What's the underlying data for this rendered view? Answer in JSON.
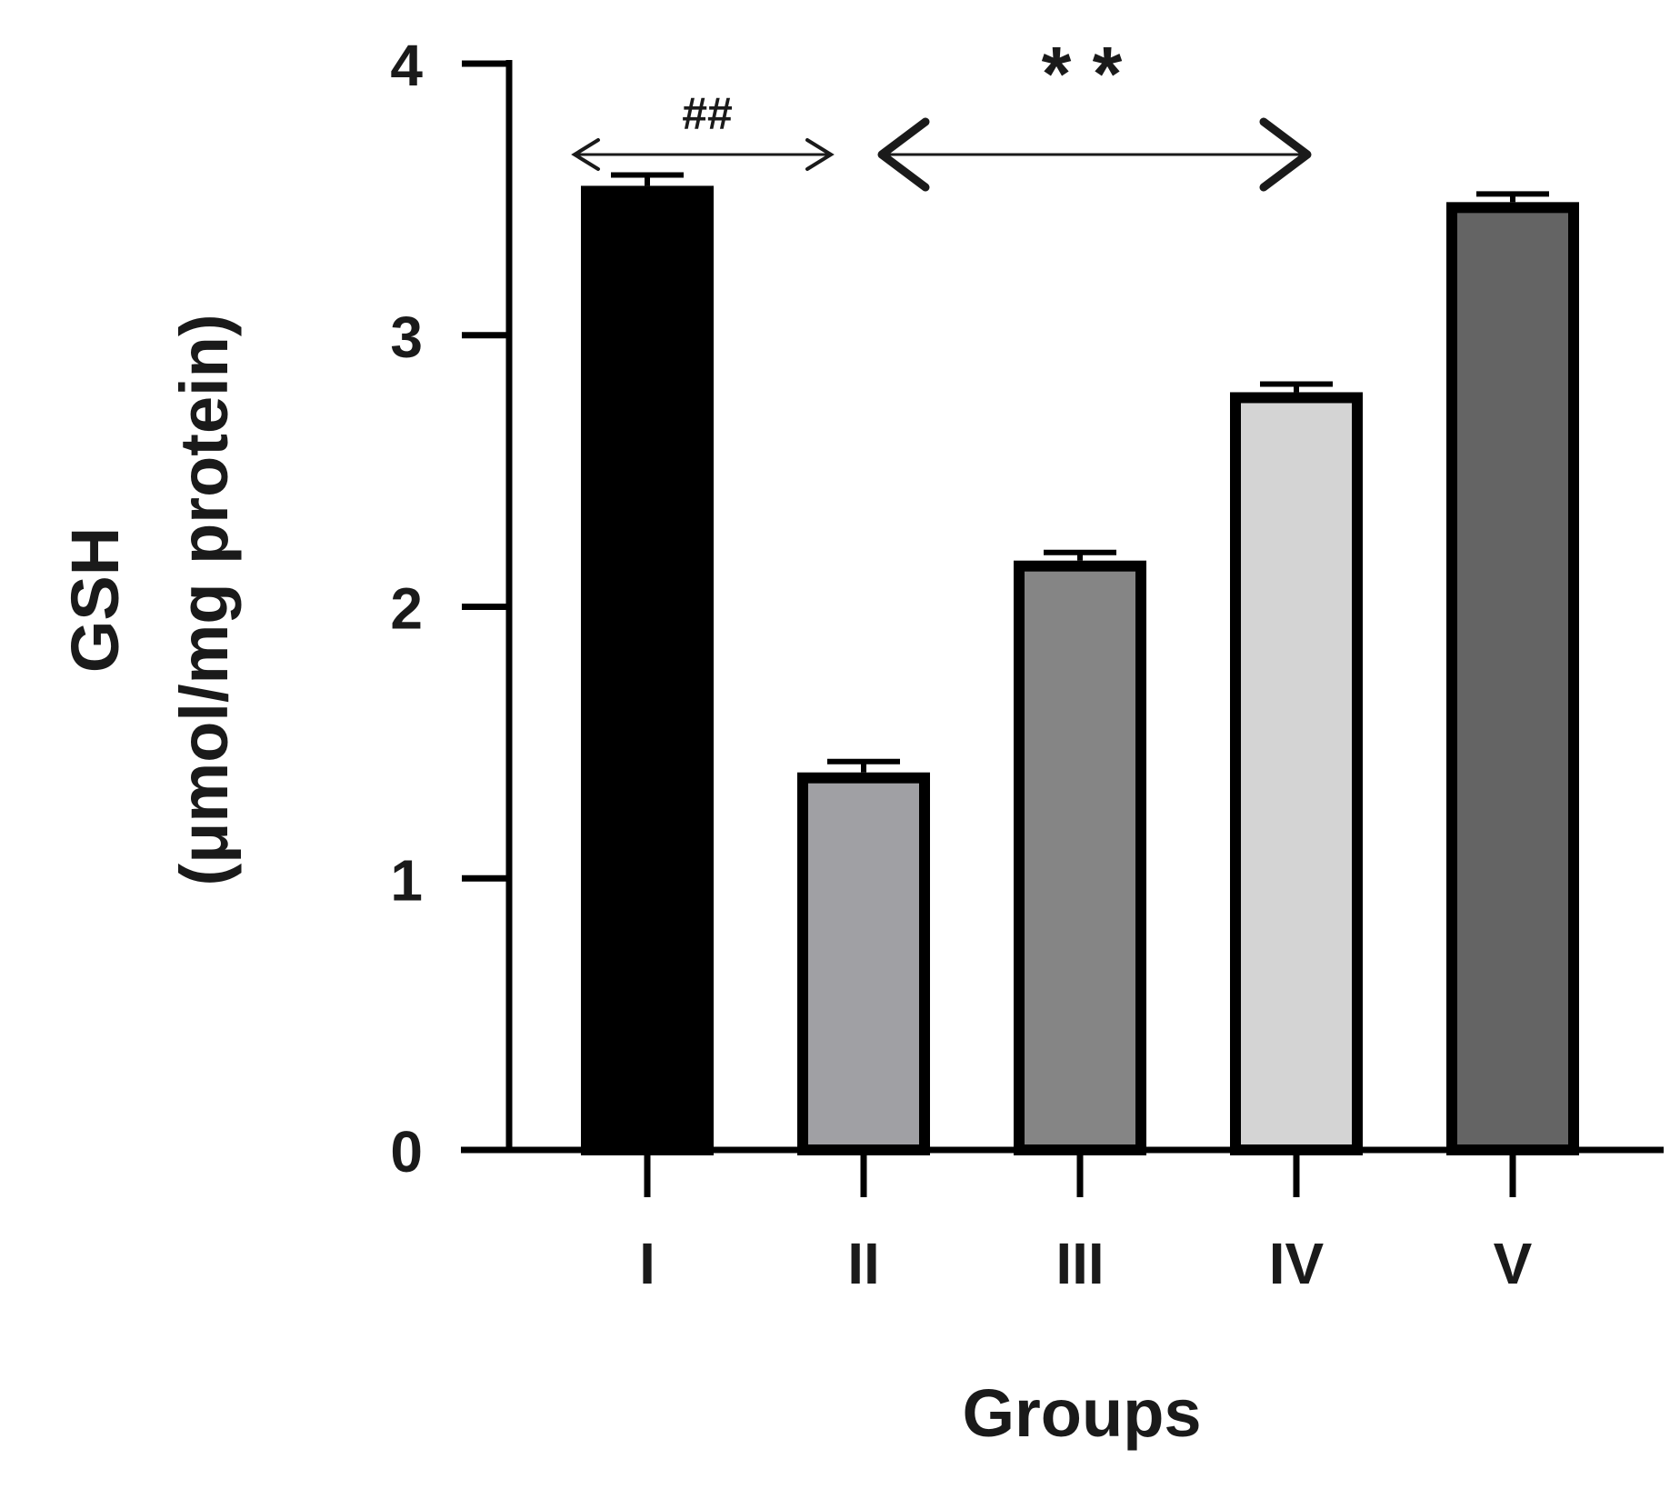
{
  "chart_data": {
    "type": "bar",
    "categories": [
      "I",
      "II",
      "III",
      "IV",
      "V"
    ],
    "values": [
      3.53,
      1.37,
      2.15,
      2.77,
      3.47
    ],
    "errors": [
      0.06,
      0.06,
      0.05,
      0.05,
      0.05
    ],
    "colors": [
      "#000000",
      "#a0a0a4",
      "#858585",
      "#d4d4d4",
      "#646464"
    ],
    "bar_outline_color": "#000000",
    "title": "",
    "xlabel": "Groups",
    "ylabel_line1": "GSH",
    "ylabel_line2": "(μmol/mg protein)",
    "ylim": [
      0,
      4
    ],
    "yticks": [
      "0",
      "1",
      "2",
      "3",
      "4"
    ],
    "grid": false,
    "legend": "none",
    "annotations": [
      {
        "text": "##",
        "from": "I",
        "to": "II",
        "arrow_color": "#1a1a1a",
        "head_color": "#1a1a1a"
      },
      {
        "text": "* *",
        "from": "II",
        "to": "IV",
        "arrow_color": "#1a1a1a",
        "head_color": "#1a1a1a"
      }
    ]
  }
}
